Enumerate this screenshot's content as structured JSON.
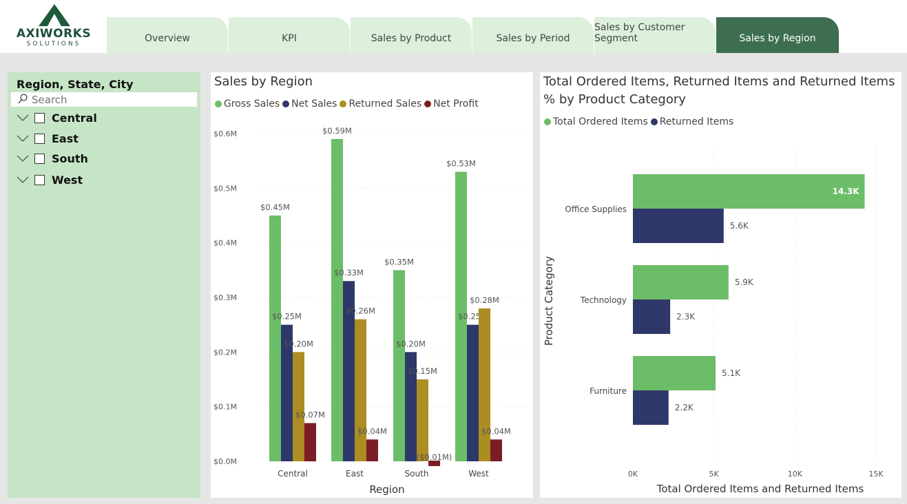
{
  "logo": {
    "title": "AXIWORKS",
    "subtitle": "SOLUTIONS"
  },
  "tabs": [
    {
      "label": "Overview",
      "active": false
    },
    {
      "label": "KPI",
      "active": false
    },
    {
      "label": "Sales by Product",
      "active": false
    },
    {
      "label": "Sales by Period",
      "active": false
    },
    {
      "label": "Sales by Customer Segment",
      "active": false
    },
    {
      "label": "Sales by Region",
      "active": true
    }
  ],
  "slicer": {
    "title": "Region, State, City",
    "search_placeholder": "Search",
    "items": [
      {
        "label": "Central",
        "checked": false
      },
      {
        "label": "East",
        "checked": false
      },
      {
        "label": "South",
        "checked": false
      },
      {
        "label": "West",
        "checked": false
      }
    ]
  },
  "colors": {
    "gross": "#6cbd68",
    "net": "#2e3769",
    "returned": "#ab8d22",
    "profit": "#7b1d24",
    "active_tab": "#3e6e50",
    "tab": "#dcf0dc",
    "slicer_bg": "#c6e5c6"
  },
  "chart_data": [
    {
      "type": "bar",
      "title": "Sales by Region",
      "categories": [
        "Central",
        "East",
        "South",
        "West"
      ],
      "series": [
        {
          "name": "Gross Sales",
          "values": [
            0.45,
            0.59,
            0.35,
            0.53
          ],
          "labels": [
            "$0.45M",
            "$0.59M",
            "$0.35M",
            "$0.53M"
          ]
        },
        {
          "name": "Net Sales",
          "values": [
            0.25,
            0.33,
            0.2,
            0.25
          ],
          "labels": [
            "$0.25M",
            "$0.33M",
            "$0.20M",
            "$0.25M"
          ]
        },
        {
          "name": "Returned Sales",
          "values": [
            0.2,
            0.26,
            0.15,
            0.28
          ],
          "labels": [
            "$0.20M",
            "$0.26M",
            "$0.15M",
            "$0.28M"
          ]
        },
        {
          "name": "Net Profit",
          "values": [
            0.07,
            0.04,
            -0.01,
            0.04
          ],
          "labels": [
            "$0.07M",
            "$0.04M",
            "($0.01M)",
            "$0.04M"
          ]
        }
      ],
      "y_ticks": [
        "$0.0M",
        "$0.1M",
        "$0.2M",
        "$0.3M",
        "$0.4M",
        "$0.5M",
        "$0.6M"
      ],
      "ylim": [
        0,
        0.6
      ],
      "xlabel": "Region",
      "ylabel": "",
      "legend": "top-left",
      "grid": true
    },
    {
      "type": "bar",
      "orientation": "horizontal",
      "title": "Total Ordered Items, Returned Items and Returned Items % by Product Category",
      "categories": [
        "Office Supplies",
        "Technology",
        "Furniture"
      ],
      "series": [
        {
          "name": "Total Ordered Items",
          "values": [
            14300,
            5900,
            5100
          ],
          "labels": [
            "14.3K",
            "5.9K",
            "5.1K"
          ]
        },
        {
          "name": "Returned Items",
          "values": [
            5600,
            2300,
            2200
          ],
          "labels": [
            "5.6K",
            "2.3K",
            "2.2K"
          ]
        }
      ],
      "x_ticks": [
        "0K",
        "5K",
        "10K",
        "15K"
      ],
      "xlim": [
        0,
        15000
      ],
      "xlabel": "Total Ordered Items and Returned Items",
      "ylabel": "Product Category",
      "legend": "top-left",
      "grid": true
    }
  ]
}
